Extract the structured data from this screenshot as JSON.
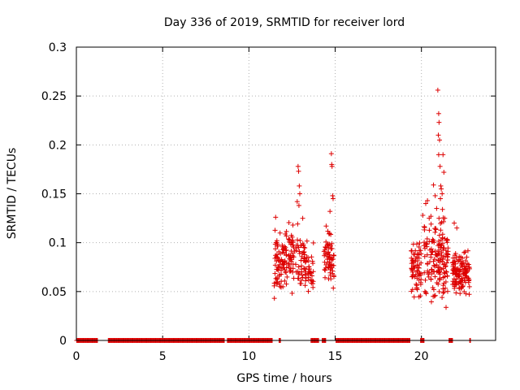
{
  "chart_data": {
    "type": "scatter",
    "title": "Day 336 of 2019, SRMTID for receiver lord",
    "xlabel": "GPS time / hours",
    "ylabel": "SRMTID / TECUs",
    "xlim": [
      0,
      24.3
    ],
    "ylim": [
      0,
      0.3
    ],
    "xticks": [
      0,
      5,
      10,
      15,
      20
    ],
    "xtick_labels": [
      "0",
      "5",
      "10",
      "15",
      "20"
    ],
    "yticks": [
      0,
      0.05,
      0.1,
      0.15,
      0.2,
      0.25,
      0.3
    ],
    "ytick_labels": [
      "0",
      "0.05",
      "0.1",
      "0.15",
      "0.2",
      "0.25",
      "0.3"
    ],
    "grid": true,
    "marker": "+",
    "color": "#dd0000",
    "zero_segments": [
      [
        0.02,
        1.25
      ],
      [
        1.85,
        8.6
      ],
      [
        8.75,
        11.35
      ],
      [
        11.75,
        11.85
      ],
      [
        13.6,
        14.05
      ],
      [
        14.25,
        14.45
      ],
      [
        15.05,
        19.35
      ],
      [
        19.95,
        20.15
      ],
      [
        21.6,
        21.8
      ],
      [
        22.8,
        22.85
      ]
    ],
    "clusters": [
      {
        "x_start": 11.45,
        "x_end": 13.25,
        "y_min": 0.035,
        "y_max": 0.13,
        "count": 170
      },
      {
        "x_start": 13.25,
        "x_end": 13.75,
        "y_min": 0.04,
        "y_max": 0.11,
        "count": 40
      },
      {
        "x_start": 14.35,
        "x_end": 14.95,
        "y_min": 0.045,
        "y_max": 0.12,
        "count": 70
      },
      {
        "x_start": 19.4,
        "x_end": 20.0,
        "y_min": 0.035,
        "y_max": 0.11,
        "count": 70
      },
      {
        "x_start": 20.15,
        "x_end": 21.55,
        "y_min": 0.025,
        "y_max": 0.14,
        "count": 160
      },
      {
        "x_start": 21.8,
        "x_end": 22.8,
        "y_min": 0.04,
        "y_max": 0.1,
        "count": 130
      }
    ],
    "points": [
      {
        "x": 11.55,
        "y": 0.126
      },
      {
        "x": 12.55,
        "y": 0.118
      },
      {
        "x": 12.85,
        "y": 0.178
      },
      {
        "x": 12.88,
        "y": 0.173
      },
      {
        "x": 12.92,
        "y": 0.158
      },
      {
        "x": 12.95,
        "y": 0.15
      },
      {
        "x": 12.8,
        "y": 0.142
      },
      {
        "x": 12.9,
        "y": 0.138
      },
      {
        "x": 14.78,
        "y": 0.191
      },
      {
        "x": 14.8,
        "y": 0.18
      },
      {
        "x": 14.82,
        "y": 0.178
      },
      {
        "x": 14.85,
        "y": 0.148
      },
      {
        "x": 14.88,
        "y": 0.145
      },
      {
        "x": 14.7,
        "y": 0.132
      },
      {
        "x": 20.08,
        "y": 0.128
      },
      {
        "x": 20.25,
        "y": 0.14
      },
      {
        "x": 20.35,
        "y": 0.143
      },
      {
        "x": 20.45,
        "y": 0.125
      },
      {
        "x": 20.55,
        "y": 0.127
      },
      {
        "x": 20.7,
        "y": 0.159
      },
      {
        "x": 20.8,
        "y": 0.148
      },
      {
        "x": 20.88,
        "y": 0.135
      },
      {
        "x": 20.95,
        "y": 0.256
      },
      {
        "x": 21.0,
        "y": 0.232
      },
      {
        "x": 21.02,
        "y": 0.223
      },
      {
        "x": 20.98,
        "y": 0.21
      },
      {
        "x": 21.05,
        "y": 0.205
      },
      {
        "x": 21.0,
        "y": 0.19
      },
      {
        "x": 21.08,
        "y": 0.178
      },
      {
        "x": 21.12,
        "y": 0.158
      },
      {
        "x": 21.15,
        "y": 0.155
      },
      {
        "x": 21.2,
        "y": 0.15
      },
      {
        "x": 21.25,
        "y": 0.19
      },
      {
        "x": 21.3,
        "y": 0.172
      },
      {
        "x": 21.22,
        "y": 0.134
      },
      {
        "x": 21.35,
        "y": 0.125
      },
      {
        "x": 21.1,
        "y": 0.145
      },
      {
        "x": 21.9,
        "y": 0.12
      },
      {
        "x": 22.05,
        "y": 0.115
      }
    ]
  }
}
